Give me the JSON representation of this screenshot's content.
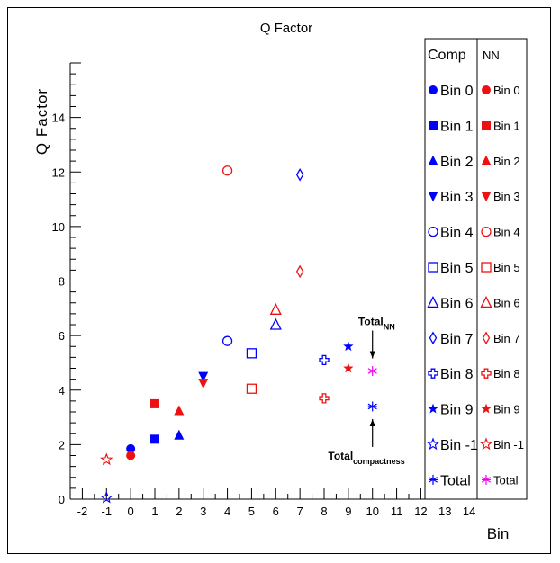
{
  "chart_data": {
    "type": "scatter",
    "title": "Q Factor",
    "xlabel": "Bin",
    "ylabel": "Q Factor",
    "xlim": [
      -2.5,
      15
    ],
    "ylim": [
      0,
      16
    ],
    "x_ticks": [
      -2,
      -1,
      0,
      1,
      2,
      3,
      4,
      5,
      6,
      7,
      8,
      9,
      10,
      11,
      12,
      13,
      14
    ],
    "y_ticks": [
      0,
      2,
      4,
      6,
      8,
      10,
      12,
      14
    ],
    "legend_position": "right",
    "colors": {
      "comp": "#0000ff",
      "nn": "#ee1111",
      "nn_total": "#ee00ee"
    },
    "series": [
      {
        "group": "Comp",
        "points": [
          {
            "label": "Bin 0",
            "marker": "circle-filled",
            "x": 0,
            "y": 1.85
          },
          {
            "label": "Bin 1",
            "marker": "square-filled",
            "x": 1,
            "y": 2.2
          },
          {
            "label": "Bin 2",
            "marker": "triangle-up-filled",
            "x": 2,
            "y": 2.35
          },
          {
            "label": "Bin 3",
            "marker": "triangle-down-filled",
            "x": 3,
            "y": 4.5
          },
          {
            "label": "Bin 4",
            "marker": "circle-open",
            "x": 4,
            "y": 5.8
          },
          {
            "label": "Bin 5",
            "marker": "square-open",
            "x": 5,
            "y": 5.35
          },
          {
            "label": "Bin 6",
            "marker": "triangle-up-open",
            "x": 6,
            "y": 6.4
          },
          {
            "label": "Bin 7",
            "marker": "diamond-open",
            "x": 7,
            "y": 11.9
          },
          {
            "label": "Bin 8",
            "marker": "cross-open",
            "x": 8,
            "y": 5.1
          },
          {
            "label": "Bin 9",
            "marker": "star-filled",
            "x": 9,
            "y": 5.6
          },
          {
            "label": "Bin -1",
            "marker": "star-open",
            "x": -1,
            "y": 0.05
          },
          {
            "label": "Total",
            "marker": "asterisk",
            "x": 10,
            "y": 3.4
          }
        ]
      },
      {
        "group": "NN",
        "points": [
          {
            "label": "Bin 0",
            "marker": "circle-filled",
            "x": 0,
            "y": 1.6
          },
          {
            "label": "Bin 1",
            "marker": "square-filled",
            "x": 1,
            "y": 3.5
          },
          {
            "label": "Bin 2",
            "marker": "triangle-up-filled",
            "x": 2,
            "y": 3.25
          },
          {
            "label": "Bin 3",
            "marker": "triangle-down-filled",
            "x": 3,
            "y": 4.25
          },
          {
            "label": "Bin 4",
            "marker": "circle-open",
            "x": 4,
            "y": 12.05
          },
          {
            "label": "Bin 5",
            "marker": "square-open",
            "x": 5,
            "y": 4.05
          },
          {
            "label": "Bin 6",
            "marker": "triangle-up-open",
            "x": 6,
            "y": 6.95
          },
          {
            "label": "Bin 7",
            "marker": "diamond-open",
            "x": 7,
            "y": 8.35
          },
          {
            "label": "Bin 8",
            "marker": "cross-open",
            "x": 8,
            "y": 3.7
          },
          {
            "label": "Bin 9",
            "marker": "star-filled",
            "x": 9,
            "y": 4.8
          },
          {
            "label": "Bin -1",
            "marker": "star-open",
            "x": -1,
            "y": 1.45
          },
          {
            "label": "Total",
            "marker": "asterisk",
            "x": 10,
            "y": 4.7
          }
        ]
      }
    ],
    "legend": {
      "comp_header": "Comp",
      "nn_header": "NN",
      "comp_entries": [
        "Bin 0",
        "Bin 1",
        "Bin 2",
        "Bin 3",
        "Bin 4",
        "Bin 5",
        "Bin 6",
        "Bin 7",
        "Bin 8",
        "Bin 9",
        "Bin -1",
        "Total"
      ],
      "nn_entries": [
        "Bin 0",
        "Bin 1",
        "Bin 2",
        "Bin 3",
        "Bin 4",
        "Bin 5",
        "Bin 6",
        "Bin 7",
        "Bin 8",
        "Bin 9",
        "Bin -1",
        "Total"
      ]
    },
    "annotations": [
      {
        "text": "Total",
        "subscript": "NN",
        "target_x": 10,
        "target_y": 4.7,
        "direction": "down"
      },
      {
        "text": "Total",
        "subscript": "compactness",
        "target_x": 10,
        "target_y": 3.4,
        "direction": "up"
      }
    ]
  }
}
